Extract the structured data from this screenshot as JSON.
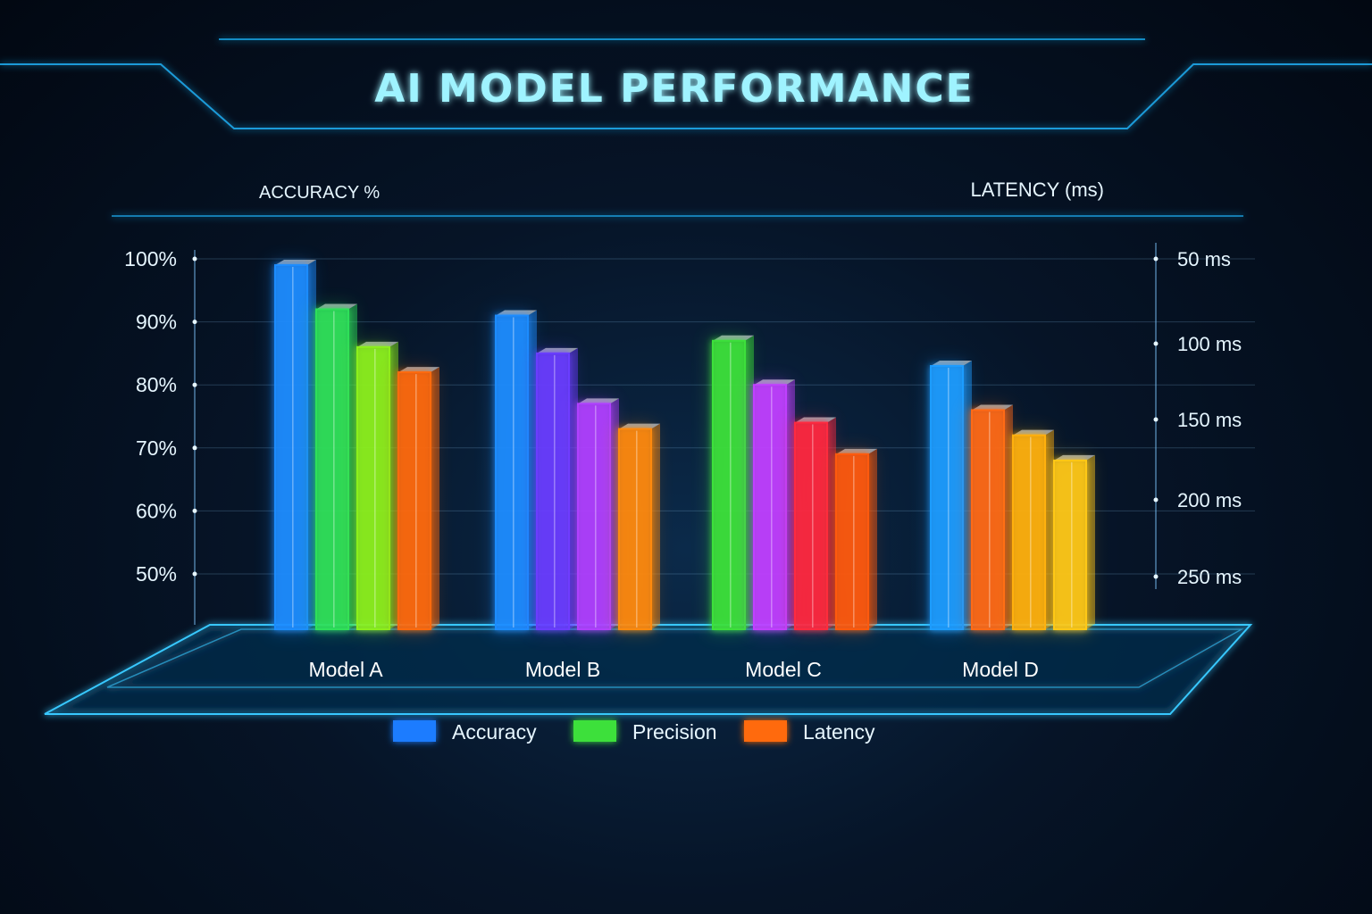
{
  "chart_data": {
    "type": "bar",
    "title": "AI MODEL PERFORMANCE",
    "y_left_label": "ACCURACY %",
    "y_right_label": "LATENCY (ms)",
    "y_left_ticks": [
      "100%",
      "90%",
      "80%",
      "70%",
      "60%",
      "50%"
    ],
    "y_right_ticks": [
      "50 ms",
      "100 ms",
      "150 ms",
      "200 ms",
      "250 ms"
    ],
    "ylim": [
      50,
      100
    ],
    "categories": [
      "Model A",
      "Model B",
      "Model C",
      "Model D"
    ],
    "groups": [
      {
        "category": "Model A",
        "bars": [
          {
            "value": 99,
            "color": "#1e8cff"
          },
          {
            "value": 92,
            "color": "#2fe05a"
          },
          {
            "value": 86,
            "color": "#8cf01e"
          },
          {
            "value": 82,
            "color": "#ff6a10"
          }
        ]
      },
      {
        "category": "Model B",
        "bars": [
          {
            "value": 91,
            "color": "#1e8cff"
          },
          {
            "value": 85,
            "color": "#6a3cff"
          },
          {
            "value": 77,
            "color": "#b040ff"
          },
          {
            "value": 73,
            "color": "#ff8a10"
          }
        ]
      },
      {
        "category": "Model C",
        "bars": [
          {
            "value": 87,
            "color": "#3ee03a"
          },
          {
            "value": 80,
            "color": "#c040ff"
          },
          {
            "value": 74,
            "color": "#ff2a40"
          },
          {
            "value": 69,
            "color": "#ff5a10"
          }
        ]
      },
      {
        "category": "Model D",
        "bars": [
          {
            "value": 83,
            "color": "#1e9cff"
          },
          {
            "value": 76,
            "color": "#ff6a18"
          },
          {
            "value": 72,
            "color": "#ffb010"
          },
          {
            "value": 68,
            "color": "#ffc818"
          }
        ]
      }
    ],
    "legend": [
      {
        "name": "Accuracy",
        "color": "#1e7cff"
      },
      {
        "name": "Precision",
        "color": "#3ee03a"
      },
      {
        "name": "Latency",
        "color": "#ff6a10"
      }
    ],
    "legend_position": "bottom",
    "grid": true
  }
}
